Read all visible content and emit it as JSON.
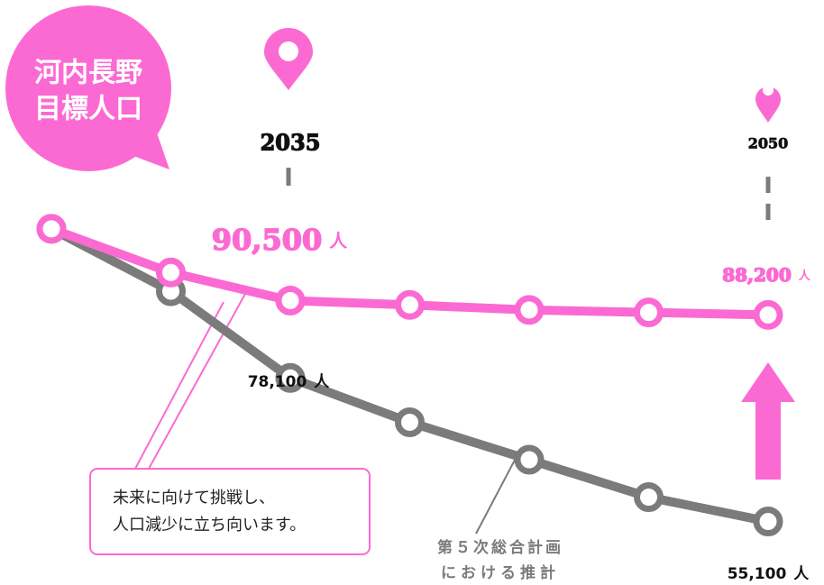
{
  "chart_data": {
    "type": "line",
    "title_lines": [
      "河内長野",
      "目標人口"
    ],
    "categories": [
      null,
      null,
      "2035",
      null,
      null,
      null,
      "2050"
    ],
    "unit": "人",
    "ylim": [
      52000,
      104000
    ],
    "series": [
      {
        "name": [
          "未来に向けて挑戦し、",
          "人口減少に立ち向います。"
        ],
        "color": "#fb6ad2",
        "values": [
          102000,
          95000,
          90500,
          89800,
          89000,
          88600,
          88200
        ],
        "value_labels": [
          null,
          null,
          "90,500",
          null,
          null,
          null,
          "88,200"
        ]
      },
      {
        "name": [
          "第５次総合計画",
          "における推計"
        ],
        "color": "#7b7b7b",
        "values": [
          102000,
          92000,
          78100,
          71000,
          65000,
          59000,
          55100
        ],
        "value_labels": [
          null,
          null,
          "78,100",
          null,
          null,
          null,
          "55,100"
        ]
      }
    ]
  }
}
